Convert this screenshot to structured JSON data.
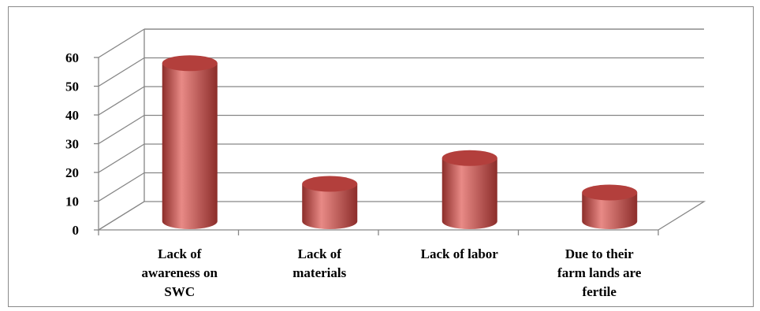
{
  "chart_data": {
    "type": "bar",
    "style": "3d-cylinder",
    "title": "",
    "xlabel": "",
    "ylabel": "",
    "categories": [
      "Lack of awareness on SWC",
      "Lack of materials",
      "Lack of labor",
      "Due to their farm lands are fertile"
    ],
    "category_lines": [
      [
        "Lack of",
        "awareness on",
        "SWC"
      ],
      [
        "Lack of",
        "materials"
      ],
      [
        "Lack of labor"
      ],
      [
        "Due to their",
        "farm lands are",
        "fertile"
      ]
    ],
    "values": [
      55,
      13,
      22,
      10
    ],
    "ylim": [
      0,
      60
    ],
    "yticks": [
      "0",
      "10",
      "20",
      "30",
      "40",
      "50",
      "60"
    ],
    "grid": true,
    "legend": "none",
    "colors": {
      "bar": "#c0504d",
      "bar_light": "#e88a86",
      "bar_dark": "#8c2d2a",
      "top": "#b33f3c",
      "grid": "#868686"
    }
  }
}
